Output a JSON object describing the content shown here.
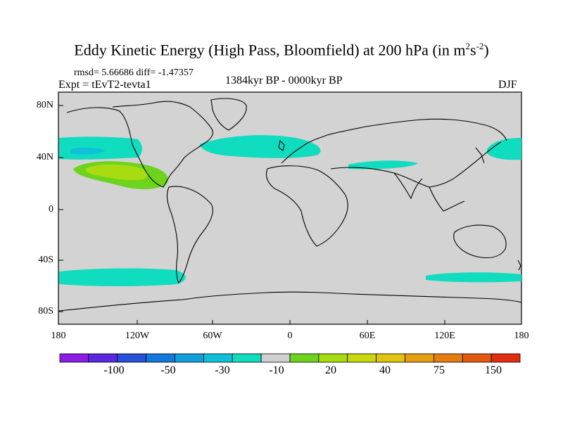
{
  "title": {
    "main": "Eddy Kinetic Energy (High Pass, Bloomfield) at 200 hPa (in m",
    "sup1": "2",
    "mid": "s",
    "sup2": "-2",
    "end": ")"
  },
  "subtitle": {
    "stats": "rmsd= 5.66686 diff= -1.47357",
    "experiment": "Expt = tEvT2-tevta1",
    "period": "1384kyr BP - 0000kyr BP",
    "season": "DJF"
  },
  "axes": {
    "y_ticks": [
      "80N",
      "40N",
      "0",
      "40S",
      "80S"
    ],
    "x_ticks": [
      "180",
      "120W",
      "60W",
      "0",
      "60E",
      "120E",
      "180"
    ]
  },
  "colorbar": {
    "colors": [
      "#8a1ee6",
      "#5a28e0",
      "#2850d8",
      "#1478dc",
      "#10a0dc",
      "#10c0d8",
      "#10dcc0",
      "#d0d0d0",
      "#6cd41c",
      "#a8dc10",
      "#c8d810",
      "#e0c410",
      "#e4a010",
      "#e47e10",
      "#e45a10",
      "#e03010"
    ],
    "labels": [
      "-100",
      "-50",
      "-30",
      "-10",
      "20",
      "40",
      "75",
      "150"
    ]
  },
  "map": {
    "background_color": "#d3d3d3",
    "anomaly_regions": [
      {
        "name": "north-pacific-west-band",
        "level": "-10",
        "color": "#10dcc0"
      },
      {
        "name": "north-atlantic-band",
        "level": "-10",
        "color": "#10dcc0"
      },
      {
        "name": "mediterranean-band",
        "level": "-10",
        "color": "#10dcc0"
      },
      {
        "name": "northwest-pacific-band",
        "level": "-10",
        "color": "#10dcc0"
      },
      {
        "name": "south-atlantic-pacific-band",
        "level": "-10",
        "color": "#10dcc0"
      },
      {
        "name": "south-australia-band",
        "level": "-10",
        "color": "#10dcc0"
      },
      {
        "name": "eastern-pacific-positive",
        "level": "20",
        "color": "#6cd41c"
      },
      {
        "name": "eastern-pacific-positive-core",
        "level": "40",
        "color": "#a8dc10"
      }
    ]
  }
}
